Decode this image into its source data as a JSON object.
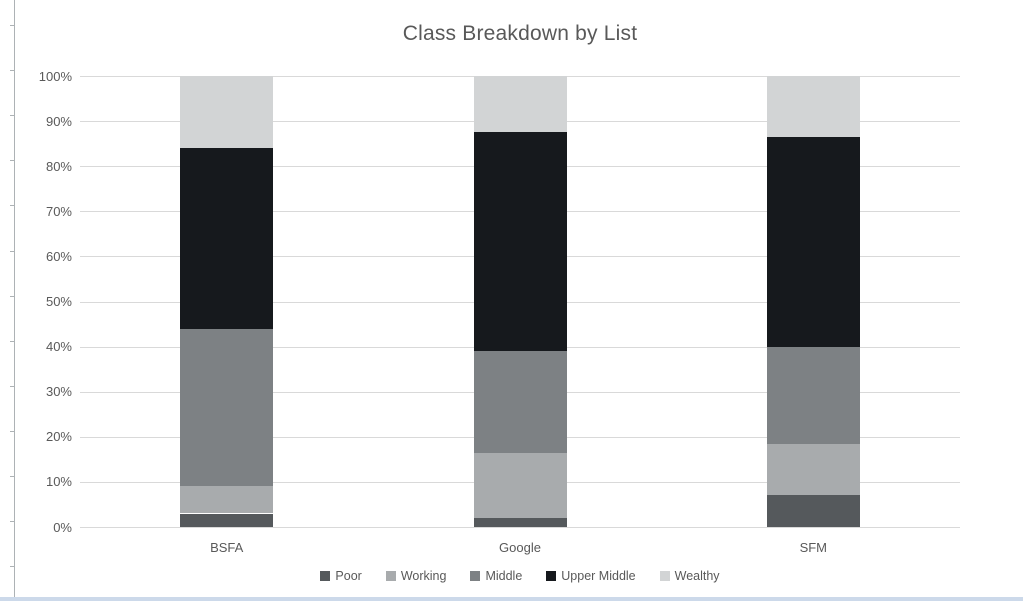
{
  "page": {
    "background": "#ffffff",
    "left_rail_color": "#adb2b5",
    "bottom_strip_color": "#ccd9ea"
  },
  "chart_data": {
    "type": "bar",
    "stacked": true,
    "percent_axis": true,
    "title": "Class Breakdown by List",
    "title_color": "#595959",
    "categories": [
      "BSFA",
      "Google",
      "SFM"
    ],
    "series": [
      {
        "name": "Poor",
        "color": "#55595c",
        "values": [
          3,
          2,
          7
        ]
      },
      {
        "name": "Working",
        "color": "#a8abad",
        "values": [
          6,
          14.5,
          11.5
        ]
      },
      {
        "name": "Middle",
        "color": "#7d8184",
        "values": [
          35,
          22.5,
          21.5
        ]
      },
      {
        "name": "Upper Middle",
        "color": "#16191d",
        "values": [
          40,
          48.5,
          46.5
        ]
      },
      {
        "name": "Wealthy",
        "color": "#d2d4d5",
        "values": [
          16,
          12.5,
          13.5
        ]
      }
    ],
    "y_axis": {
      "min": 0,
      "max": 100,
      "step": 10,
      "tick_labels": [
        "0%",
        "10%",
        "20%",
        "30%",
        "40%",
        "50%",
        "60%",
        "70%",
        "80%",
        "90%",
        "100%"
      ],
      "label_color": "#595959"
    },
    "grid": true,
    "gridline_color": "#d9d9d9",
    "legend_position": "bottom",
    "legend_label_color": "#595959",
    "category_label_color": "#595959"
  }
}
